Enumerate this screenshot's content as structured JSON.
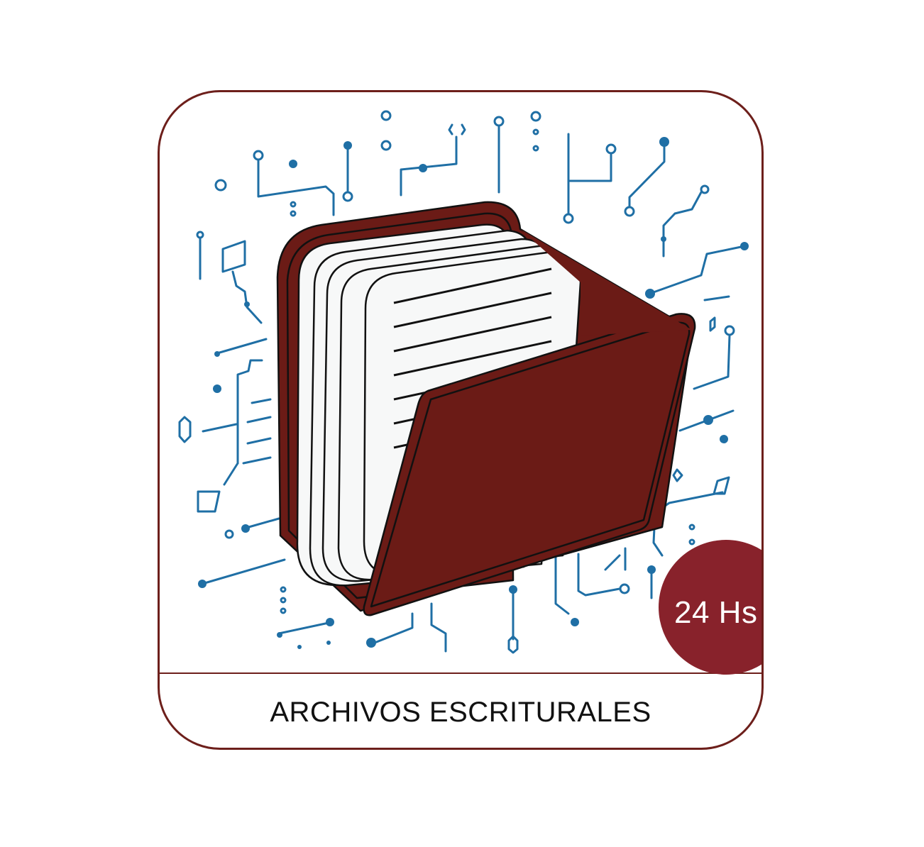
{
  "badge": {
    "text": "24 Hs"
  },
  "label": {
    "text": "ARCHIVOS ESCRITURALES"
  },
  "colors": {
    "frame": "#6d1f1b",
    "folder": "#6b1b16",
    "badge": "#88222b",
    "circuit": "#1f6fa5",
    "paper": "#f7f8f8"
  },
  "icons": {
    "main": "folder-with-documents-icon",
    "background": "circuit-pattern-icon"
  }
}
